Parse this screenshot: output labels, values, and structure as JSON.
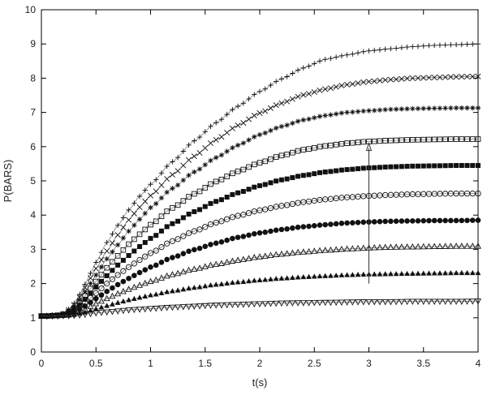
{
  "chart_data": {
    "type": "scatter",
    "title": "",
    "xlabel": "t(s)",
    "ylabel": "P(BARS)",
    "xlim": [
      0,
      4
    ],
    "ylim": [
      0,
      10
    ],
    "x_ticks": [
      "0",
      "0.5",
      "1",
      "1.5",
      "2",
      "2.5",
      "3",
      "3.5",
      "4"
    ],
    "y_ticks": [
      "0",
      "1",
      "2",
      "3",
      "4",
      "5",
      "6",
      "7",
      "8",
      "9",
      "10"
    ],
    "grid": false,
    "legend": "none",
    "x": [
      0.0,
      0.05,
      0.1,
      0.15,
      0.2,
      0.25,
      0.3,
      0.35,
      0.4,
      0.45,
      0.5,
      0.6,
      0.7,
      0.8,
      0.9,
      1.0,
      1.2,
      1.4,
      1.6,
      1.8,
      2.0,
      2.2,
      2.4,
      2.6,
      2.8,
      3.0,
      3.2,
      3.4,
      3.6,
      3.8,
      4.0
    ],
    "series": [
      {
        "marker": "plus",
        "values": [
          1.05,
          1.05,
          1.06,
          1.08,
          1.13,
          1.25,
          1.42,
          1.68,
          1.98,
          2.3,
          2.62,
          3.2,
          3.7,
          4.15,
          4.55,
          4.9,
          5.56,
          6.17,
          6.7,
          7.18,
          7.61,
          7.98,
          8.3,
          8.55,
          8.68,
          8.8,
          8.86,
          8.92,
          8.96,
          8.98,
          9.0
        ]
      },
      {
        "marker": "cross",
        "values": [
          1.05,
          1.05,
          1.06,
          1.08,
          1.12,
          1.23,
          1.38,
          1.6,
          1.88,
          2.16,
          2.44,
          2.95,
          3.42,
          3.86,
          4.23,
          4.57,
          5.18,
          5.72,
          6.2,
          6.62,
          6.98,
          7.27,
          7.51,
          7.68,
          7.81,
          7.9,
          7.96,
          8.0,
          8.02,
          8.04,
          8.05
        ]
      },
      {
        "marker": "asterisk",
        "values": [
          1.05,
          1.05,
          1.06,
          1.08,
          1.11,
          1.2,
          1.33,
          1.52,
          1.76,
          2.0,
          2.25,
          2.72,
          3.13,
          3.53,
          3.88,
          4.22,
          4.78,
          5.26,
          5.68,
          6.04,
          6.35,
          6.59,
          6.78,
          6.91,
          7.0,
          7.05,
          7.09,
          7.11,
          7.12,
          7.13,
          7.13
        ]
      },
      {
        "marker": "square-open",
        "values": [
          1.05,
          1.05,
          1.06,
          1.07,
          1.1,
          1.17,
          1.28,
          1.44,
          1.64,
          1.85,
          2.06,
          2.46,
          2.81,
          3.15,
          3.44,
          3.72,
          4.21,
          4.62,
          4.98,
          5.28,
          5.53,
          5.74,
          5.91,
          6.02,
          6.1,
          6.15,
          6.18,
          6.2,
          6.21,
          6.22,
          6.22
        ]
      },
      {
        "marker": "square-filled",
        "values": [
          1.05,
          1.05,
          1.06,
          1.07,
          1.09,
          1.15,
          1.24,
          1.37,
          1.54,
          1.72,
          1.9,
          2.23,
          2.54,
          2.82,
          3.08,
          3.32,
          3.75,
          4.1,
          4.4,
          4.65,
          4.86,
          5.03,
          5.16,
          5.26,
          5.33,
          5.38,
          5.41,
          5.43,
          5.44,
          5.45,
          5.45
        ]
      },
      {
        "marker": "circle-open",
        "values": [
          1.05,
          1.05,
          1.06,
          1.07,
          1.08,
          1.13,
          1.2,
          1.31,
          1.44,
          1.58,
          1.72,
          2.0,
          2.25,
          2.48,
          2.69,
          2.89,
          3.24,
          3.53,
          3.78,
          3.98,
          4.14,
          4.27,
          4.38,
          4.46,
          4.52,
          4.56,
          4.59,
          4.61,
          4.62,
          4.63,
          4.63
        ]
      },
      {
        "marker": "circle-filled",
        "values": [
          1.05,
          1.05,
          1.06,
          1.07,
          1.08,
          1.11,
          1.16,
          1.24,
          1.34,
          1.45,
          1.56,
          1.77,
          1.97,
          2.15,
          2.32,
          2.48,
          2.76,
          2.99,
          3.18,
          3.35,
          3.48,
          3.58,
          3.66,
          3.72,
          3.77,
          3.8,
          3.82,
          3.83,
          3.84,
          3.84,
          3.85
        ]
      },
      {
        "marker": "triangle-up-open",
        "values": [
          1.05,
          1.05,
          1.06,
          1.06,
          1.07,
          1.09,
          1.13,
          1.18,
          1.25,
          1.33,
          1.41,
          1.56,
          1.7,
          1.83,
          1.95,
          2.06,
          2.26,
          2.42,
          2.56,
          2.68,
          2.78,
          2.86,
          2.92,
          2.97,
          3.01,
          3.04,
          3.06,
          3.07,
          3.08,
          3.09,
          3.09
        ]
      },
      {
        "marker": "triangle-up-filled",
        "values": [
          1.05,
          1.05,
          1.05,
          1.06,
          1.06,
          1.07,
          1.09,
          1.12,
          1.16,
          1.21,
          1.26,
          1.35,
          1.44,
          1.52,
          1.59,
          1.66,
          1.78,
          1.88,
          1.97,
          2.04,
          2.1,
          2.15,
          2.19,
          2.22,
          2.25,
          2.27,
          2.28,
          2.29,
          2.3,
          2.31,
          2.31
        ]
      },
      {
        "marker": "triangle-down-open",
        "values": [
          1.05,
          1.05,
          1.05,
          1.05,
          1.06,
          1.06,
          1.07,
          1.08,
          1.1,
          1.12,
          1.14,
          1.17,
          1.2,
          1.23,
          1.25,
          1.27,
          1.31,
          1.34,
          1.37,
          1.39,
          1.41,
          1.43,
          1.44,
          1.45,
          1.46,
          1.47,
          1.47,
          1.48,
          1.48,
          1.48,
          1.49
        ]
      }
    ],
    "annotations": [
      {
        "type": "arrow",
        "x": 3.0,
        "y_from": 2.0,
        "y_to": 6.1
      }
    ]
  }
}
